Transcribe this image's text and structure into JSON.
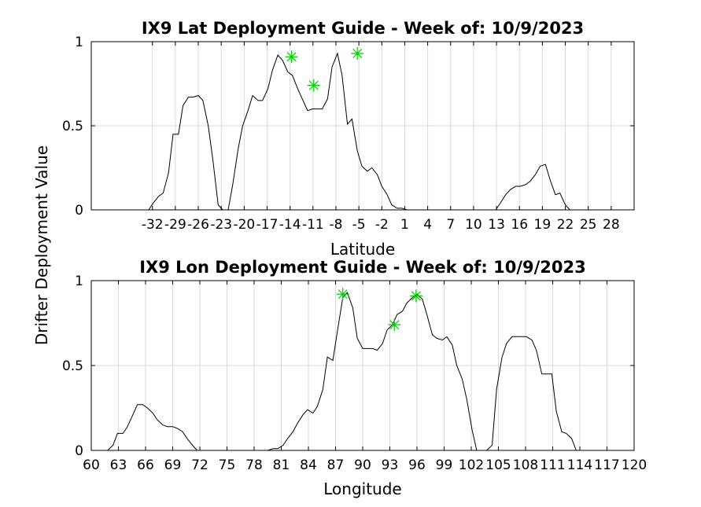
{
  "figure": {
    "ylabel": "Drifter Deployment Value"
  },
  "chart_data": [
    {
      "type": "line",
      "title": "IX9 Lat Deployment Guide - Week of: 10/9/2023",
      "xlabel": "Latitude",
      "ylabel": "Drifter Deployment Value",
      "xlim": [
        -40,
        31
      ],
      "ylim": [
        0,
        1
      ],
      "xticks": [
        -32,
        -29,
        -26,
        -23,
        -20,
        -17,
        -14,
        -11,
        -8,
        -5,
        -2,
        1,
        4,
        7,
        10,
        13,
        16,
        19,
        22,
        25,
        28
      ],
      "xtick_labels": [
        "-32",
        "-29",
        "-26",
        "-23",
        "-20",
        "-17",
        "-14",
        "-11",
        "-8",
        "-5",
        "-2",
        "1",
        "4",
        "7",
        "10",
        "13",
        "16",
        "19",
        "22",
        "25",
        "28"
      ],
      "yticks": [
        0,
        0.5,
        1
      ],
      "ytick_labels": [
        "0",
        "0.5",
        "1"
      ],
      "grid": true,
      "line_color": "#000000",
      "marker_color": "#00cc00",
      "x": [
        -40,
        -32.5,
        -31.9,
        -31.2,
        -30.6,
        -29.9,
        -29.3,
        -28.6,
        -28.0,
        -27.3,
        -26.7,
        -26.0,
        -25.4,
        -24.7,
        -24.1,
        -23.4,
        -22.8,
        -22.1,
        -21.5,
        -20.8,
        -20.2,
        -19.5,
        -18.9,
        -18.2,
        -17.6,
        -16.9,
        -16.3,
        -15.6,
        -15.0,
        -14.3,
        -13.7,
        -13.0,
        -12.4,
        -11.7,
        -11.1,
        -10.4,
        -9.8,
        -9.1,
        -8.5,
        -7.8,
        -7.2,
        -6.5,
        -5.9,
        -5.2,
        -4.6,
        -3.9,
        -3.3,
        -2.6,
        -2.0,
        -1.3,
        -0.7,
        0.0,
        0.6,
        1.3,
        1.9,
        2.6,
        3.2,
        3.9,
        4.5,
        12.9,
        13.5,
        14.2,
        14.8,
        15.5,
        16.1,
        16.8,
        17.4,
        18.1,
        18.7,
        19.4,
        20.0,
        20.7,
        21.3,
        22.0,
        22.6,
        23.3,
        23.9,
        31.0
      ],
      "y": [
        0,
        0,
        0.04,
        0.08,
        0.1,
        0.22,
        0.45,
        0.45,
        0.62,
        0.67,
        0.67,
        0.68,
        0.65,
        0.5,
        0.3,
        0.03,
        0.0,
        0.0,
        0.15,
        0.36,
        0.5,
        0.59,
        0.68,
        0.65,
        0.65,
        0.72,
        0.83,
        0.92,
        0.89,
        0.82,
        0.8,
        0.72,
        0.66,
        0.59,
        0.6,
        0.6,
        0.6,
        0.66,
        0.85,
        0.93,
        0.8,
        0.51,
        0.54,
        0.35,
        0.26,
        0.23,
        0.25,
        0.21,
        0.14,
        0.09,
        0.03,
        0.01,
        0.01,
        0.0,
        0.0,
        0.0,
        0.0,
        0.0,
        0.0,
        0.0,
        0.04,
        0.09,
        0.12,
        0.14,
        0.14,
        0.15,
        0.17,
        0.21,
        0.26,
        0.27,
        0.18,
        0.09,
        0.1,
        0.03,
        0.0,
        0.0,
        0.0,
        0.0
      ],
      "markers": [
        {
          "x": -13.8,
          "y": 0.91
        },
        {
          "x": -10.9,
          "y": 0.74
        },
        {
          "x": -5.2,
          "y": 0.93
        }
      ]
    },
    {
      "type": "line",
      "title": "IX9 Lon Deployment Guide - Week of: 10/9/2023",
      "xlabel": "Longitude",
      "ylabel": "Drifter Deployment Value",
      "xlim": [
        60,
        120
      ],
      "ylim": [
        0,
        1
      ],
      "xticks": [
        60,
        63,
        66,
        69,
        72,
        75,
        78,
        81,
        84,
        87,
        90,
        93,
        96,
        99,
        102,
        105,
        108,
        111,
        114,
        117,
        120
      ],
      "xtick_labels": [
        "60",
        "63",
        "66",
        "69",
        "72",
        "75",
        "78",
        "81",
        "84",
        "87",
        "90",
        "93",
        "96",
        "99",
        "102",
        "105",
        "108",
        "111",
        "114",
        "117",
        "120"
      ],
      "yticks": [
        0,
        0.5,
        1
      ],
      "ytick_labels": [
        "0",
        "0.5",
        "1"
      ],
      "grid": true,
      "line_color": "#000000",
      "marker_color": "#00cc00",
      "x": [
        60,
        61.3,
        61.8,
        62.4,
        62.9,
        63.5,
        64.0,
        64.6,
        65.1,
        65.7,
        66.2,
        66.8,
        67.3,
        67.9,
        68.4,
        69.0,
        69.5,
        70.1,
        70.6,
        71.2,
        71.7,
        72.3,
        79.5,
        80.1,
        80.6,
        81.2,
        81.7,
        82.3,
        82.8,
        83.4,
        83.9,
        84.5,
        85.0,
        85.6,
        86.1,
        86.7,
        87.2,
        87.8,
        88.3,
        88.9,
        89.4,
        90.0,
        90.5,
        91.1,
        91.6,
        92.2,
        92.7,
        93.3,
        93.8,
        94.4,
        94.9,
        95.5,
        96.0,
        96.6,
        97.1,
        97.7,
        98.2,
        98.8,
        99.3,
        99.9,
        100.4,
        101.0,
        101.5,
        102.1,
        102.6,
        103.2,
        103.7,
        104.3,
        104.8,
        105.4,
        105.9,
        106.5,
        107.0,
        107.6,
        108.1,
        108.7,
        109.2,
        109.8,
        110.3,
        110.9,
        111.4,
        112.0,
        112.5,
        113.1,
        113.6,
        114.2,
        114.7,
        120.0
      ],
      "y": [
        0,
        0,
        0.0,
        0.03,
        0.1,
        0.1,
        0.14,
        0.21,
        0.27,
        0.27,
        0.25,
        0.22,
        0.18,
        0.15,
        0.14,
        0.14,
        0.13,
        0.11,
        0.07,
        0.03,
        0.0,
        0.0,
        0.0,
        0.01,
        0.01,
        0.03,
        0.07,
        0.11,
        0.16,
        0.21,
        0.24,
        0.22,
        0.26,
        0.36,
        0.55,
        0.53,
        0.7,
        0.9,
        0.93,
        0.84,
        0.66,
        0.6,
        0.6,
        0.6,
        0.59,
        0.63,
        0.71,
        0.74,
        0.8,
        0.82,
        0.87,
        0.9,
        0.92,
        0.89,
        0.8,
        0.68,
        0.66,
        0.65,
        0.67,
        0.62,
        0.5,
        0.42,
        0.3,
        0.12,
        0.0,
        0.0,
        0.0,
        0.03,
        0.36,
        0.55,
        0.63,
        0.67,
        0.67,
        0.67,
        0.67,
        0.65,
        0.59,
        0.45,
        0.45,
        0.45,
        0.23,
        0.11,
        0.1,
        0.07,
        0.0,
        0.0,
        0.0,
        0.0
      ],
      "markers": [
        {
          "x": 87.8,
          "y": 0.92
        },
        {
          "x": 93.5,
          "y": 0.74
        },
        {
          "x": 95.9,
          "y": 0.91
        }
      ]
    }
  ]
}
